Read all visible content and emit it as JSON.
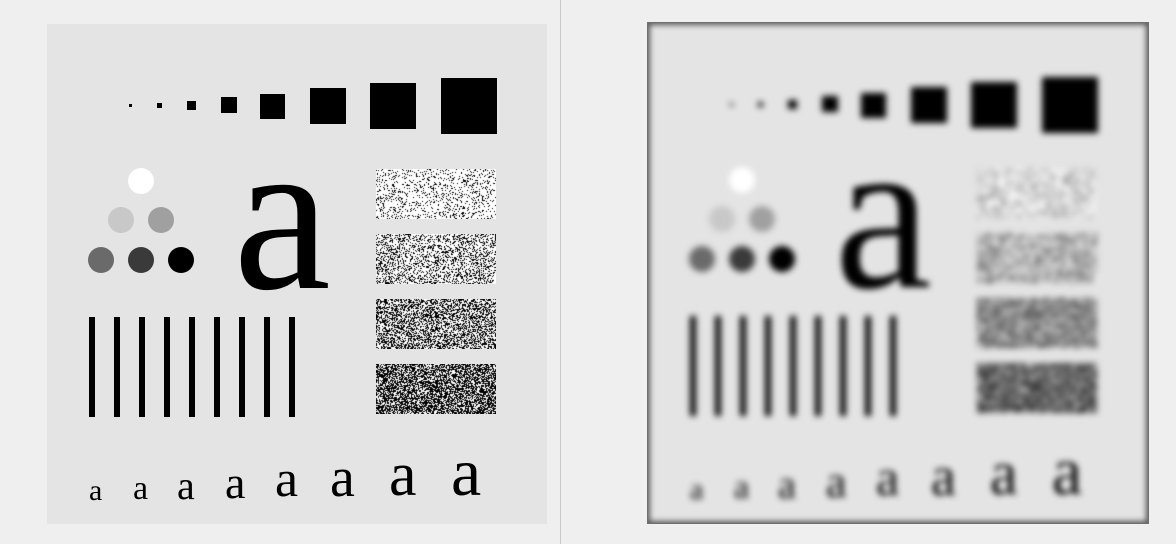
{
  "letters": {
    "big": "a",
    "row": [
      "a",
      "a",
      "a",
      "a",
      "a",
      "a",
      "a",
      "a"
    ]
  },
  "colors": {
    "background": "#efefef",
    "panel": "#e4e4e4",
    "ink": "#000000",
    "circle_white": "#ffffff",
    "circle_light": "#c8c8c8",
    "circle_mid": "#a0a0a0",
    "circle_darkgray": "#6a6a6a",
    "circle_dark": "#3a3a3a"
  },
  "noise_densities": [
    0.15,
    0.3,
    0.45,
    0.6
  ]
}
